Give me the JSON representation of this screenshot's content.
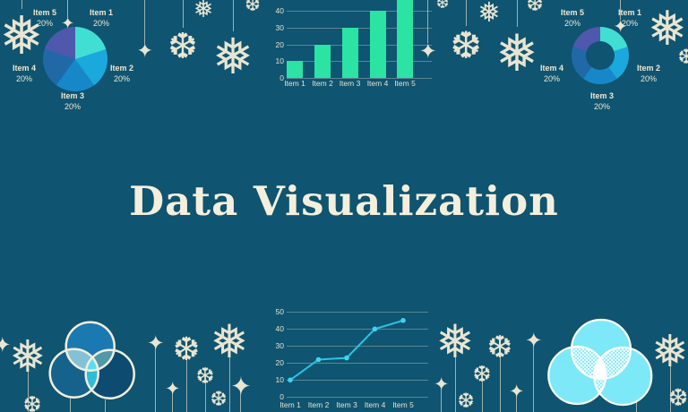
{
  "page": {
    "title": "Data Visualization",
    "background_color": "#0F5470",
    "text_color": "#EDE8D5",
    "accent_cream": "#F4EFDC"
  },
  "icons": {
    "snowflake_large": "❅",
    "snowflake_alt": "❆",
    "sparkle_star": "✦"
  },
  "chart_data": [
    {
      "id": "pie",
      "type": "pie",
      "labels": [
        "Item 1",
        "Item 2",
        "Item 3",
        "Item 4",
        "Item 5"
      ],
      "values": [
        20,
        20,
        20,
        20,
        20
      ],
      "value_labels": [
        "20%",
        "20%",
        "20%",
        "20%",
        "20%"
      ],
      "colors": [
        "#41DED3",
        "#1BA8DC",
        "#1688C9",
        "#2069A6",
        "#4E58AC"
      ]
    },
    {
      "id": "bar",
      "type": "bar",
      "categories": [
        "Item 1",
        "Item 2",
        "Item 3",
        "Item 4",
        "Item 5"
      ],
      "values": [
        10,
        20,
        30,
        40,
        50
      ],
      "bar_color": "#2BE3A3",
      "yticks": [
        0,
        10,
        20,
        30,
        40
      ],
      "ylim": [
        0,
        50
      ],
      "grid": true,
      "note": "top of Item 5 bar clipped by image edge"
    },
    {
      "id": "donut",
      "type": "pie",
      "subtype": "donut",
      "labels": [
        "Item 1",
        "Item 2",
        "Item 3",
        "Item 4",
        "Item 5"
      ],
      "values": [
        20,
        20,
        20,
        20,
        20
      ],
      "value_labels": [
        "20%",
        "20%",
        "20%",
        "20%",
        "20%"
      ],
      "colors": [
        "#41DED3",
        "#1BA8DC",
        "#1688C9",
        "#2069A6",
        "#4E58AC"
      ]
    },
    {
      "id": "line",
      "type": "line",
      "categories": [
        "Item 1",
        "Item 2",
        "Item 3",
        "Item 4",
        "Item 5"
      ],
      "values": [
        10,
        22,
        23,
        40,
        45
      ],
      "line_color": "#29C3E8",
      "point_color": "#3DD4EE",
      "yticks": [
        0,
        10,
        20,
        30,
        40,
        50
      ],
      "ylim": [
        0,
        50
      ],
      "grid": true
    },
    {
      "id": "venn-left",
      "type": "venn",
      "circle_colors": [
        "#1B79B2",
        "#15638C",
        "#0D4B70"
      ],
      "overlap_colors": {
        "top_left": "#84C1D5",
        "top_right": "#4F99A9",
        "left_right": "#2FBCD8",
        "center": "#5ADDEE"
      },
      "outline_color": "#F2EEDC"
    },
    {
      "id": "venn-right",
      "type": "venn",
      "circle_colors": [
        "#7DE8F8",
        "#7DE8F8",
        "#7DE8F8"
      ],
      "overlap_style": "white crosshatch mesh",
      "hatch_color": "#FFFFFF",
      "center_color": "#FFFFFF",
      "outline_color": "#FDFDF8"
    }
  ]
}
